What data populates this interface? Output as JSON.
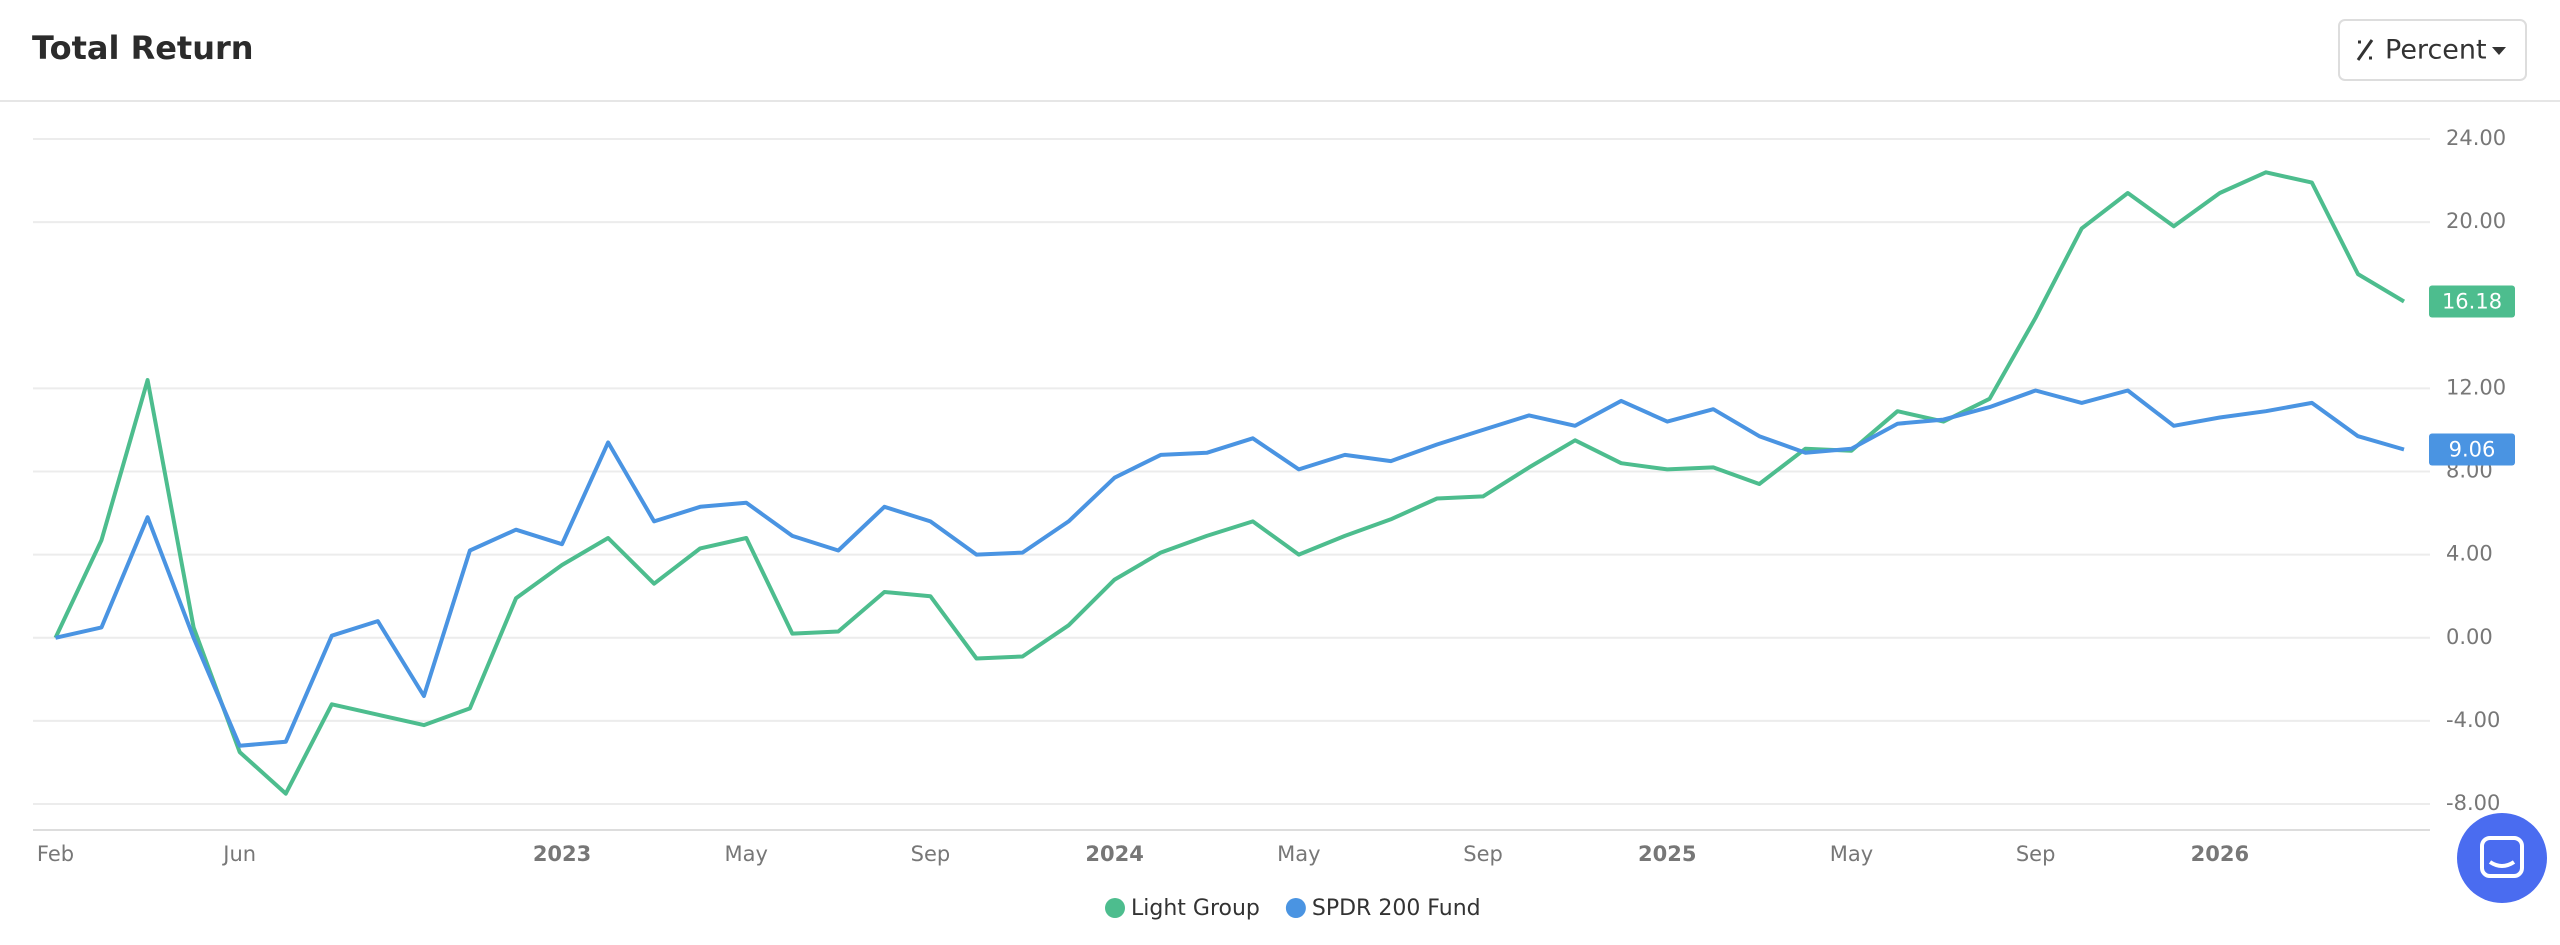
{
  "header": {
    "title": "Total Return",
    "button": "Percent"
  },
  "chart_data": {
    "type": "line",
    "x": [
      "2022-02",
      "2022-03",
      "2022-04",
      "2022-05",
      "2022-06",
      "2022-07",
      "2022-08",
      "2022-09",
      "2022-10",
      "2022-11",
      "2022-12",
      "2023-01",
      "2023-02",
      "2023-03",
      "2023-04",
      "2023-05",
      "2023-06",
      "2023-07",
      "2023-08",
      "2023-09",
      "2023-10",
      "2023-11",
      "2023-12",
      "2024-01",
      "2024-02",
      "2024-03",
      "2024-04",
      "2024-05",
      "2024-06",
      "2024-07",
      "2024-08",
      "2024-09",
      "2024-10",
      "2024-11",
      "2024-12",
      "2025-01",
      "2025-02",
      "2025-03",
      "2025-04",
      "2025-05",
      "2025-06",
      "2025-07",
      "2025-08",
      "2025-09",
      "2025-10",
      "2025-11",
      "2025-12",
      "2026-01",
      "2026-02",
      "2026-03",
      "2026-04",
      "2026-05"
    ],
    "series": [
      {
        "name": "Light Group",
        "color": "#4dbd8e",
        "end_label": "16.18",
        "values": [
          0,
          4.7,
          12.4,
          0.5,
          -5.5,
          -7.5,
          -3.2,
          -3.7,
          -4.2,
          -3.4,
          1.9,
          3.5,
          4.8,
          2.6,
          4.3,
          4.8,
          0.2,
          0.3,
          2.2,
          2.0,
          -1.0,
          -0.9,
          0.6,
          2.8,
          4.1,
          4.9,
          5.6,
          4.0,
          4.9,
          5.7,
          6.7,
          6.8,
          8.2,
          9.5,
          8.4,
          8.1,
          8.2,
          7.4,
          9.1,
          9.0,
          10.9,
          10.4,
          11.5,
          15.4,
          19.7,
          21.4,
          19.8,
          21.4,
          22.4,
          21.9,
          17.5,
          16.18
        ]
      },
      {
        "name": "SPDR 200 Fund",
        "color": "#4a94e2",
        "end_label": "9.06",
        "values": [
          0,
          0.5,
          5.8,
          0,
          -5.2,
          -5.0,
          0.1,
          0.8,
          -2.8,
          4.2,
          5.2,
          4.5,
          9.4,
          5.6,
          6.3,
          6.5,
          4.9,
          4.2,
          6.3,
          5.6,
          4.0,
          4.1,
          5.6,
          7.7,
          8.8,
          8.9,
          9.6,
          8.1,
          8.8,
          8.5,
          9.3,
          10.0,
          10.7,
          10.2,
          11.4,
          10.4,
          11.0,
          9.7,
          8.9,
          9.1,
          10.3,
          10.5,
          11.1,
          11.9,
          11.3,
          11.9,
          10.2,
          10.6,
          10.9,
          11.3,
          9.7,
          9.06
        ]
      }
    ],
    "xticks": [
      {
        "value": "2022-02",
        "label": "Feb"
      },
      {
        "value": "2022-06",
        "label": "Jun"
      },
      {
        "value": "2023-01",
        "label": "2023"
      },
      {
        "value": "2023-05",
        "label": "May"
      },
      {
        "value": "2023-09",
        "label": "Sep"
      },
      {
        "value": "2024-01",
        "label": "2024"
      },
      {
        "value": "2024-05",
        "label": "May"
      },
      {
        "value": "2024-09",
        "label": "Sep"
      },
      {
        "value": "2025-01",
        "label": "2025"
      },
      {
        "value": "2025-05",
        "label": "May"
      },
      {
        "value": "2025-09",
        "label": "Sep"
      },
      {
        "value": "2026-01",
        "label": "2026"
      }
    ],
    "ylim": [
      -9.25,
      24
    ],
    "yticks": [
      {
        "value": -8,
        "label": "-8.00"
      },
      {
        "value": -4,
        "label": "-4.00"
      },
      {
        "value": 0,
        "label": "0.00"
      },
      {
        "value": 4,
        "label": "4.00"
      },
      {
        "value": 8,
        "label": "8.00"
      },
      {
        "value": 12,
        "label": "12.00"
      },
      {
        "value": 20,
        "label": "20.00"
      },
      {
        "value": 24,
        "label": "24.00"
      }
    ],
    "grid": true
  }
}
